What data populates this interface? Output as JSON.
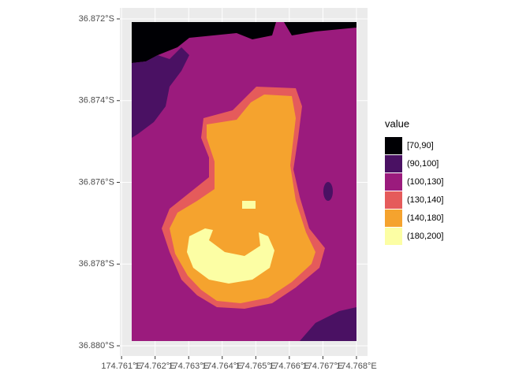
{
  "chart_data": {
    "type": "raster",
    "xlim": [
      174.76095,
      174.76833
    ],
    "ylim": [
      -36.88025,
      -36.87173
    ],
    "xticks": [
      {
        "value": 174.761,
        "label": "174.761°E"
      },
      {
        "value": 174.762,
        "label": "174.762°E"
      },
      {
        "value": 174.763,
        "label": "174.763°E"
      },
      {
        "value": 174.764,
        "label": "174.764°E"
      },
      {
        "value": 174.765,
        "label": "174.765°E"
      },
      {
        "value": 174.766,
        "label": "174.766°E"
      },
      {
        "value": 174.767,
        "label": "174.767°E"
      },
      {
        "value": 174.768,
        "label": "174.768°E"
      }
    ],
    "yticks": [
      {
        "value": -36.872,
        "label": "36.872°S"
      },
      {
        "value": -36.874,
        "label": "36.874°S"
      },
      {
        "value": -36.876,
        "label": "36.876°S"
      },
      {
        "value": -36.878,
        "label": "36.878°S"
      },
      {
        "value": -36.88,
        "label": "36.880°S"
      }
    ],
    "grid": true,
    "legend_title": "value",
    "classes": [
      {
        "label": "[70,90]",
        "color": "#000004"
      },
      {
        "label": "(90,100]",
        "color": "#4a1163"
      },
      {
        "label": "(100,130]",
        "color": "#9b1b7d"
      },
      {
        "label": "(130,140]",
        "color": "#e55b5b"
      },
      {
        "label": "(140,180]",
        "color": "#f5a32e"
      },
      {
        "label": "(180,200]",
        "color": "#fcfea4"
      }
    ]
  }
}
